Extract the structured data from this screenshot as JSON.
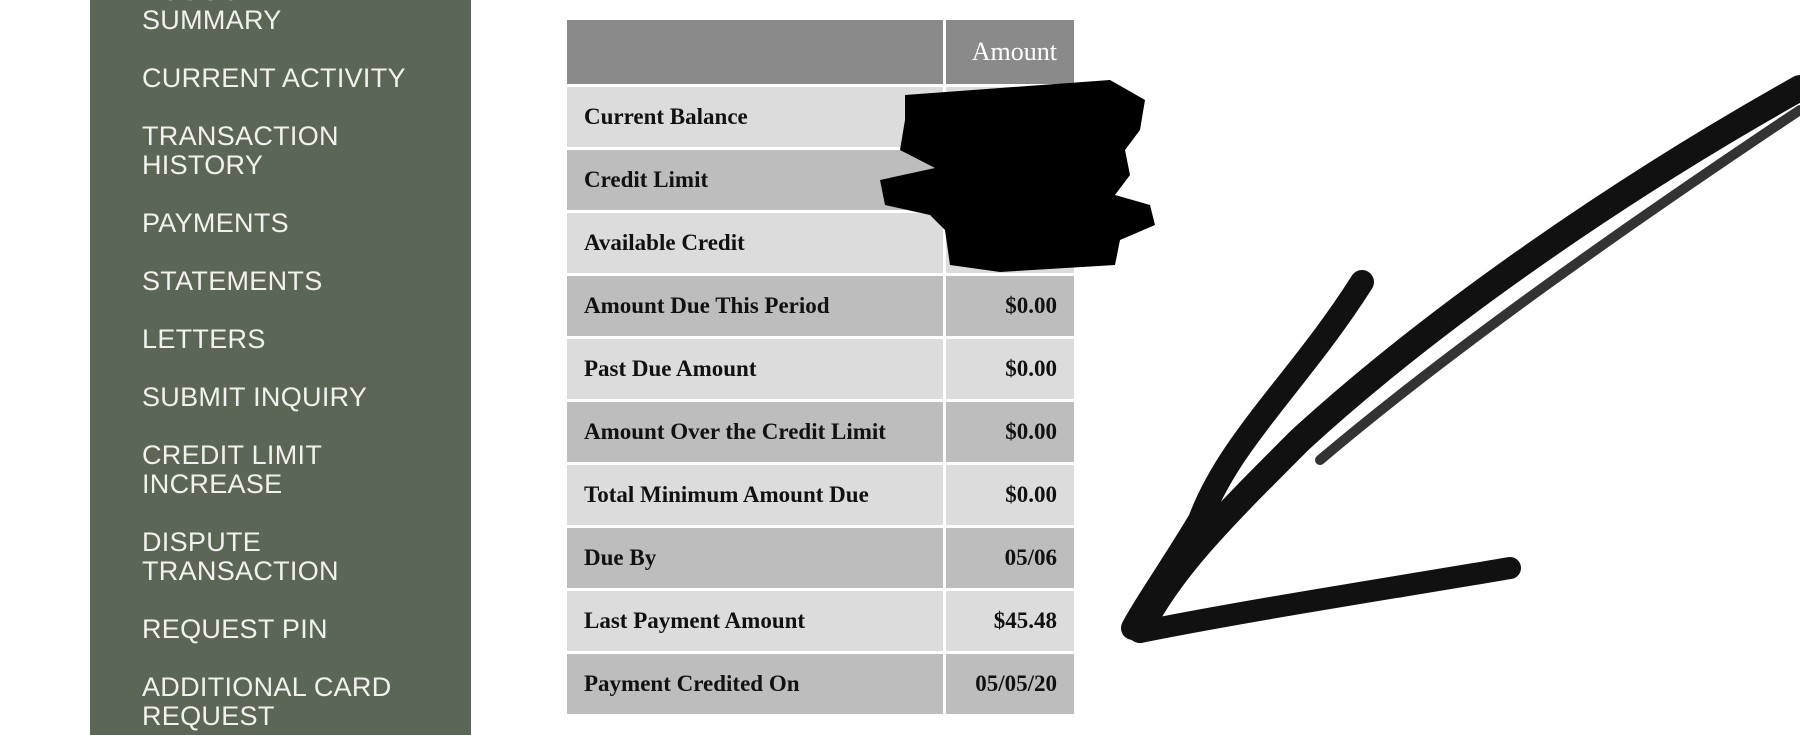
{
  "sidebar": {
    "items": [
      {
        "label": "ACCOUNT\nSUMMARY"
      },
      {
        "label": "CURRENT ACTIVITY"
      },
      {
        "label": "TRANSACTION\nHISTORY"
      },
      {
        "label": "PAYMENTS"
      },
      {
        "label": "STATEMENTS"
      },
      {
        "label": "LETTERS"
      },
      {
        "label": "SUBMIT INQUIRY"
      },
      {
        "label": "CREDIT LIMIT\nINCREASE"
      },
      {
        "label": "DISPUTE\nTRANSACTION"
      },
      {
        "label": "REQUEST PIN"
      },
      {
        "label": "ADDITIONAL CARD\nREQUEST"
      }
    ],
    "background": "#5b6657"
  },
  "summary_table": {
    "header": {
      "label": "",
      "amount": "Amount"
    },
    "rows": [
      {
        "label": "Current Balance",
        "value": "",
        "redacted": true
      },
      {
        "label": "Credit Limit",
        "value": "",
        "redacted": true
      },
      {
        "label": "Available Credit",
        "value": "",
        "redacted": true
      },
      {
        "label": "Amount Due This Period",
        "value": "$0.00"
      },
      {
        "label": "Past Due Amount",
        "value": "$0.00"
      },
      {
        "label": "Amount Over the Credit Limit",
        "value": "$0.00"
      },
      {
        "label": "Total Minimum Amount Due",
        "value": "$0.00"
      },
      {
        "label": "Due By",
        "value": "05/06"
      },
      {
        "label": "Last Payment Amount",
        "value": "$45.48"
      },
      {
        "label": "Payment Credited On",
        "value": "05/05/20"
      }
    ]
  },
  "annotations": {
    "redaction_color": "#000000",
    "arrow_color": "#111111"
  }
}
